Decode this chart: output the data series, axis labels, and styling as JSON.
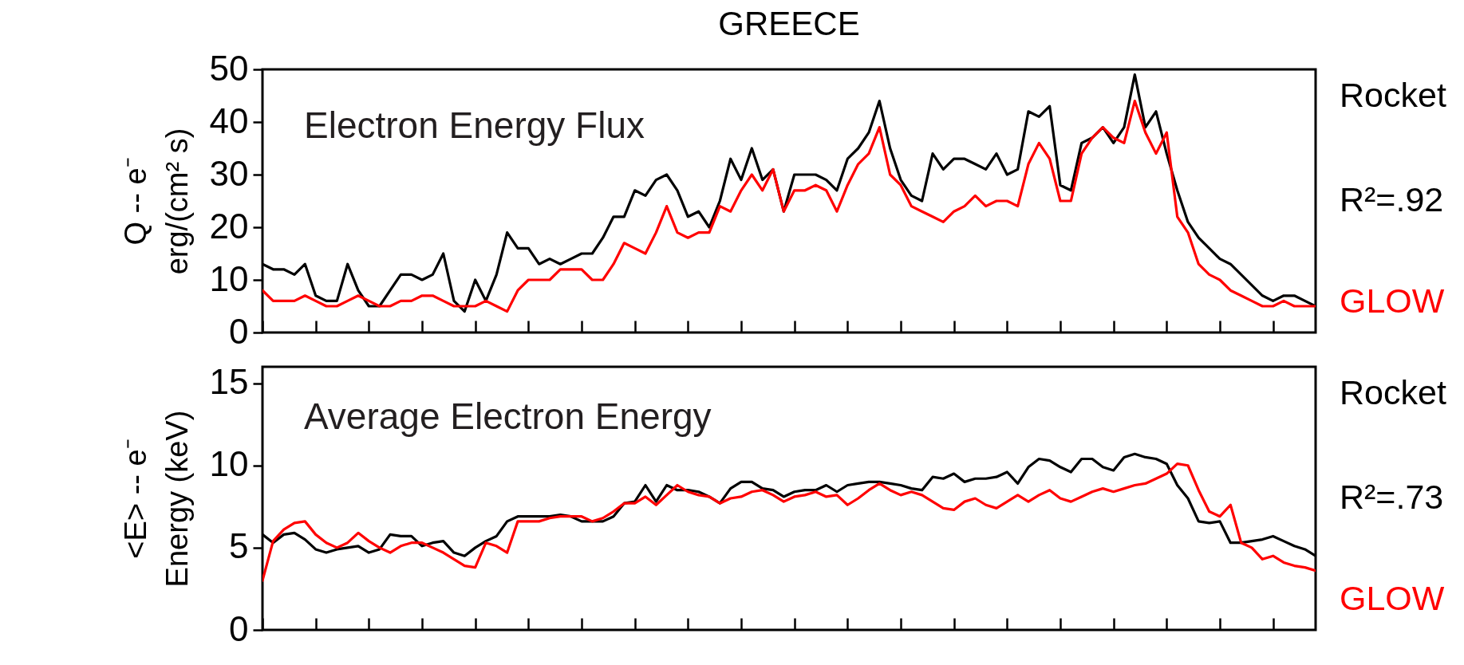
{
  "chart_data": [
    {
      "type": "line",
      "title": "GREECE",
      "subtitle": "Electron Energy Flux",
      "ylabel": "Q -- e⁻\nerg/(cm² s)",
      "categories": [
        null,
        null,
        null,
        null,
        null,
        null,
        null,
        null,
        null,
        null,
        null,
        null,
        null,
        null,
        null,
        null,
        null,
        null,
        null,
        null,
        null,
        null,
        null,
        null,
        null,
        null,
        null,
        null,
        null,
        null,
        null,
        null,
        null,
        null,
        null,
        null,
        null,
        null,
        null,
        null,
        null,
        null,
        null,
        null,
        null,
        null,
        null,
        null,
        null,
        null,
        null,
        null,
        null,
        null,
        null,
        null,
        null,
        null,
        null,
        null,
        null,
        null,
        null,
        null,
        null,
        null,
        null,
        null,
        null,
        null,
        null,
        null,
        null,
        null,
        null,
        null,
        null,
        null,
        null,
        null,
        null,
        null,
        null,
        null,
        null,
        null,
        null,
        null,
        null,
        null,
        null,
        null,
        null,
        null,
        null,
        null,
        null,
        null,
        null,
        null
      ],
      "series": [
        {
          "name": "Rocket",
          "color": "#000000",
          "values": [
            13,
            12,
            12,
            11,
            13,
            7,
            6,
            6,
            13,
            8,
            5,
            5,
            8,
            11,
            11,
            10,
            11,
            15,
            6,
            4,
            10,
            6,
            11,
            19,
            16,
            16,
            13,
            14,
            13,
            14,
            15,
            15,
            18,
            22,
            22,
            27,
            26,
            29,
            30,
            27,
            22,
            23,
            20,
            25,
            33,
            29,
            35,
            29,
            31,
            23,
            30,
            30,
            30,
            29,
            27,
            33,
            35,
            38,
            44,
            35,
            29,
            26,
            25,
            34,
            31,
            33,
            33,
            32,
            31,
            34,
            30,
            31,
            42,
            41,
            43,
            28,
            27,
            36,
            37,
            39,
            36,
            39,
            49,
            39,
            42,
            34,
            27,
            21,
            18,
            16,
            14,
            13,
            11,
            9,
            7,
            6,
            7,
            7,
            6,
            5
          ]
        },
        {
          "name": "GLOW",
          "color": "#ff0000",
          "values": [
            8,
            6,
            6,
            6,
            7,
            6,
            5,
            5,
            6,
            7,
            6,
            5,
            5,
            6,
            6,
            7,
            7,
            6,
            5,
            5,
            5,
            6,
            5,
            4,
            8,
            10,
            10,
            10,
            12,
            12,
            12,
            10,
            10,
            13,
            17,
            16,
            15,
            19,
            24,
            19,
            18,
            19,
            19,
            24,
            23,
            27,
            30,
            27,
            31,
            23,
            27,
            27,
            28,
            27,
            23,
            28,
            32,
            34,
            39,
            30,
            28,
            24,
            23,
            22,
            21,
            23,
            24,
            26,
            24,
            25,
            25,
            24,
            32,
            36,
            33,
            25,
            25,
            34,
            37,
            39,
            37,
            36,
            44,
            38,
            34,
            38,
            22,
            19,
            13,
            11,
            10,
            8,
            7,
            6,
            5,
            5,
            6,
            5,
            5,
            5
          ]
        }
      ],
      "ylim": [
        0,
        50
      ],
      "yticks": [
        0,
        10,
        20,
        30,
        40,
        50
      ],
      "tick_labels": "y",
      "legend": "right",
      "annotations": [
        "R²=.92"
      ]
    },
    {
      "type": "line",
      "title": "Average Electron Energy",
      "ylabel": "<E> -- e⁻\nEnergy (keV)",
      "categories": [
        null,
        null,
        null,
        null,
        null,
        null,
        null,
        null,
        null,
        null,
        null,
        null,
        null,
        null,
        null,
        null,
        null,
        null,
        null,
        null,
        null,
        null,
        null,
        null,
        null,
        null,
        null,
        null,
        null,
        null,
        null,
        null,
        null,
        null,
        null,
        null,
        null,
        null,
        null,
        null,
        null,
        null,
        null,
        null,
        null,
        null,
        null,
        null,
        null,
        null,
        null,
        null,
        null,
        null,
        null,
        null,
        null,
        null,
        null,
        null,
        null,
        null,
        null,
        null,
        null,
        null,
        null,
        null,
        null,
        null,
        null,
        null,
        null,
        null,
        null,
        null,
        null,
        null,
        null,
        null,
        null,
        null,
        null,
        null,
        null,
        null,
        null,
        null,
        null,
        null,
        null,
        null,
        null,
        null,
        null,
        null,
        null,
        null,
        null,
        null
      ],
      "series": [
        {
          "name": "Rocket",
          "color": "#000000",
          "values": [
            5.8,
            5.3,
            5.8,
            5.9,
            5.5,
            4.9,
            4.7,
            4.9,
            5.0,
            5.1,
            4.7,
            4.9,
            5.8,
            5.7,
            5.7,
            5.1,
            5.3,
            5.4,
            4.7,
            4.5,
            5.0,
            5.4,
            5.7,
            6.6,
            6.9,
            6.9,
            6.9,
            6.9,
            7.0,
            6.9,
            6.6,
            6.6,
            6.6,
            6.9,
            7.7,
            7.8,
            8.8,
            7.8,
            8.8,
            8.5,
            8.5,
            8.4,
            8.1,
            7.7,
            8.6,
            9.0,
            9.0,
            8.6,
            8.5,
            8.1,
            8.4,
            8.5,
            8.5,
            8.8,
            8.4,
            8.8,
            8.9,
            9.0,
            9.0,
            8.9,
            8.8,
            8.6,
            8.5,
            9.3,
            9.2,
            9.5,
            9.0,
            9.2,
            9.2,
            9.3,
            9.6,
            8.9,
            9.9,
            10.4,
            10.3,
            9.9,
            9.6,
            10.4,
            10.4,
            9.9,
            9.7,
            10.5,
            10.7,
            10.5,
            10.4,
            10.1,
            8.8,
            8.0,
            6.6,
            6.5,
            6.6,
            5.3,
            5.3,
            5.4,
            5.5,
            5.7,
            5.4,
            5.1,
            4.9,
            4.5
          ]
        },
        {
          "name": "GLOW",
          "color": "#ff0000",
          "values": [
            3.0,
            5.4,
            6.1,
            6.5,
            6.6,
            5.8,
            5.3,
            5.0,
            5.3,
            5.9,
            5.4,
            5.0,
            4.7,
            5.1,
            5.3,
            5.3,
            5.0,
            4.7,
            4.3,
            3.9,
            3.8,
            5.3,
            5.1,
            4.7,
            6.6,
            6.6,
            6.6,
            6.8,
            6.9,
            6.9,
            6.9,
            6.6,
            6.8,
            7.2,
            7.7,
            7.7,
            8.1,
            7.6,
            8.2,
            8.8,
            8.4,
            8.2,
            8.1,
            7.7,
            8.0,
            8.1,
            8.4,
            8.5,
            8.2,
            7.8,
            8.1,
            8.2,
            8.4,
            8.1,
            8.2,
            7.6,
            8.0,
            8.5,
            8.9,
            8.5,
            8.2,
            8.4,
            8.2,
            7.8,
            7.4,
            7.3,
            7.8,
            8.0,
            7.6,
            7.4,
            7.8,
            8.2,
            7.8,
            8.2,
            8.5,
            8.0,
            7.8,
            8.1,
            8.4,
            8.6,
            8.4,
            8.6,
            8.8,
            8.9,
            9.2,
            9.5,
            10.1,
            10.0,
            8.5,
            7.2,
            6.9,
            7.6,
            5.3,
            5.0,
            4.3,
            4.5,
            4.1,
            3.9,
            3.8,
            3.6
          ]
        }
      ],
      "ylim": [
        0,
        16
      ],
      "yticks": [
        0,
        5,
        10,
        15
      ],
      "tick_labels": "y",
      "legend": "right",
      "annotations": [
        "R²=.73"
      ]
    }
  ]
}
